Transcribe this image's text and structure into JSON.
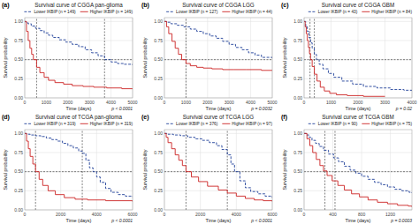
{
  "chart_data": [
    {
      "type": "step",
      "panel_label": "(a)",
      "title": "Survival curve of CGGA pan-glioma",
      "x_label": "Time (days)",
      "y_label": "Survival probability",
      "annotation": "p < 0.0001",
      "xlim": [
        0,
        5000
      ],
      "ylim": [
        0.0,
        1.05
      ],
      "xticks": [
        0,
        1000,
        2000,
        3000,
        4000,
        5000
      ],
      "yticks": [
        {
          "value": 0.0,
          "label": "0.00"
        },
        0.25,
        {
          "value": 0.5,
          "label": "0.50"
        },
        0.75,
        {
          "value": 1.0,
          "label": "1.00"
        }
      ],
      "grid": true,
      "legend": "upper right",
      "reference_lines": {
        "x": [
          3700,
          550
        ],
        "y": [
          0.5
        ]
      },
      "series": [
        {
          "name": "Lower IKBIP (n = 149)",
          "color": "#1F3F99",
          "line_style": "dashed",
          "x": [
            0,
            50,
            150,
            300,
            500,
            700,
            900,
            1100,
            1300,
            1600,
            1900,
            2200,
            2500,
            2800,
            3100,
            3400,
            3700,
            4000,
            4300,
            4600,
            5000
          ],
          "values": [
            1.0,
            0.99,
            0.97,
            0.94,
            0.91,
            0.88,
            0.85,
            0.82,
            0.79,
            0.76,
            0.73,
            0.7,
            0.67,
            0.63,
            0.59,
            0.55,
            0.5,
            0.47,
            0.45,
            0.44,
            0.43
          ]
        },
        {
          "name": "Higher IKBIP (n = 149)",
          "color": "#CC2222",
          "line_style": "solid",
          "x": [
            0,
            80,
            160,
            240,
            320,
            400,
            550,
            700,
            900,
            1100,
            1400,
            1800,
            2200,
            2700,
            3200,
            3800,
            4500,
            5000
          ],
          "values": [
            1.0,
            0.87,
            0.75,
            0.65,
            0.57,
            0.5,
            0.4,
            0.33,
            0.27,
            0.23,
            0.2,
            0.18,
            0.16,
            0.15,
            0.14,
            0.13,
            0.12,
            0.12
          ]
        }
      ]
    },
    {
      "type": "step",
      "panel_label": "(b)",
      "title": "Survival curve of CGGA LGG",
      "x_label": "Time (days)",
      "y_label": "Survival probability",
      "annotation": "p = 0.0032",
      "xlim": [
        0,
        5000
      ],
      "ylim": [
        0.0,
        1.05
      ],
      "xticks": [
        0,
        1000,
        2000,
        3000,
        4000,
        5000
      ],
      "yticks": [
        {
          "value": 0.0,
          "label": "0.00"
        },
        0.25,
        {
          "value": 0.5,
          "label": "0.50"
        },
        0.75,
        {
          "value": 1.0,
          "label": "1.00"
        }
      ],
      "grid": true,
      "legend": "upper right",
      "reference_lines": {
        "x": [
          1000
        ],
        "y": [
          0.5
        ]
      },
      "series": [
        {
          "name": "Lower IKBIP (n = 127)",
          "color": "#1F3F99",
          "line_style": "dashed",
          "x": [
            0,
            100,
            300,
            600,
            900,
            1200,
            1500,
            1800,
            2100,
            2400,
            2700,
            3000,
            3300,
            3600,
            3900,
            4200,
            4500,
            5000
          ],
          "values": [
            1.0,
            0.99,
            0.97,
            0.95,
            0.93,
            0.9,
            0.87,
            0.84,
            0.81,
            0.78,
            0.74,
            0.7,
            0.66,
            0.63,
            0.59,
            0.56,
            0.53,
            0.52
          ]
        },
        {
          "name": "Higher IKBIP (n = 44)",
          "color": "#CC2222",
          "line_style": "solid",
          "x": [
            0,
            100,
            200,
            350,
            500,
            650,
            800,
            1000,
            1200,
            1500,
            1800,
            2200,
            2700,
            3200,
            3800,
            4500,
            5000
          ],
          "values": [
            1.0,
            0.93,
            0.84,
            0.74,
            0.65,
            0.57,
            0.5,
            0.45,
            0.42,
            0.4,
            0.39,
            0.38,
            0.37,
            0.37,
            0.37,
            0.36,
            0.36
          ]
        }
      ]
    },
    {
      "type": "step",
      "panel_label": "(c)",
      "title": "Survival curve of CGGA GBM",
      "x_label": "Time (days)",
      "y_label": "Survival probability",
      "annotation": "p = 0.02",
      "xlim": [
        0,
        4000
      ],
      "ylim": [
        0.0,
        1.05
      ],
      "xticks": [
        0,
        1000,
        2000,
        3000,
        4000
      ],
      "yticks": [
        {
          "value": 0.0,
          "label": "0.00"
        },
        0.25,
        {
          "value": 0.5,
          "label": "0.50"
        },
        0.75,
        {
          "value": 1.0,
          "label": "1.00"
        }
      ],
      "grid": true,
      "legend": "upper right",
      "reference_lines": {
        "x": [
          380,
          220
        ],
        "y": [
          0.5
        ]
      },
      "series": [
        {
          "name": "Lower IKBIP (n = 43)",
          "color": "#1F3F99",
          "line_style": "dashed",
          "x": [
            0,
            60,
            120,
            180,
            240,
            300,
            380,
            460,
            560,
            700,
            900,
            1100,
            1400,
            1800,
            2200,
            2700,
            3200,
            3700,
            4000
          ],
          "values": [
            1.0,
            0.94,
            0.87,
            0.79,
            0.72,
            0.65,
            0.57,
            0.5,
            0.44,
            0.38,
            0.32,
            0.27,
            0.22,
            0.18,
            0.15,
            0.13,
            0.11,
            0.1,
            0.09
          ]
        },
        {
          "name": "Higher IKBIP (n = 84)",
          "color": "#CC2222",
          "line_style": "solid",
          "x": [
            0,
            40,
            80,
            120,
            160,
            200,
            240,
            300,
            380,
            480,
            600,
            750,
            950,
            1200,
            1600,
            2200,
            3000
          ],
          "values": [
            1.0,
            0.93,
            0.84,
            0.75,
            0.66,
            0.58,
            0.5,
            0.41,
            0.31,
            0.22,
            0.14,
            0.09,
            0.06,
            0.04,
            0.03,
            0.02,
            0.02
          ]
        }
      ]
    },
    {
      "type": "step",
      "panel_label": "(d)",
      "title": "Survival curve of TCGA pan-glioma",
      "x_label": "Time (days)",
      "y_label": "Survival probability",
      "annotation": "p < 0.0001",
      "xlim": [
        0,
        6000
      ],
      "ylim": [
        0.0,
        1.05
      ],
      "xticks": [
        0,
        2000,
        4000,
        6000
      ],
      "yticks": [
        {
          "value": 0.0,
          "label": "0.00"
        },
        0.25,
        {
          "value": 0.5,
          "label": "0.50"
        },
        0.75,
        {
          "value": 1.0,
          "label": "1.00"
        }
      ],
      "grid": true,
      "legend": "upper right",
      "reference_lines": {
        "x": [
          3200,
          600
        ],
        "y": [
          0.5
        ]
      },
      "series": [
        {
          "name": "Lower IKBIP (n = 319)",
          "color": "#1F3F99",
          "line_style": "dashed",
          "x": [
            0,
            100,
            300,
            600,
            900,
            1200,
            1500,
            1800,
            2100,
            2400,
            2700,
            3000,
            3200,
            3400,
            3600,
            3800,
            4000,
            4200,
            4500,
            4800,
            5200,
            5600,
            6000
          ],
          "values": [
            1.0,
            0.99,
            0.98,
            0.97,
            0.96,
            0.94,
            0.92,
            0.9,
            0.87,
            0.84,
            0.81,
            0.77,
            0.74,
            0.65,
            0.55,
            0.5,
            0.43,
            0.36,
            0.28,
            0.23,
            0.2,
            0.18,
            0.17
          ]
        },
        {
          "name": "Higher IKBIP (n = 319)",
          "color": "#CC2222",
          "line_style": "solid",
          "x": [
            0,
            100,
            200,
            300,
            450,
            600,
            800,
            1000,
            1300,
            1700,
            2200,
            2800,
            3500,
            4500,
            6000
          ],
          "values": [
            1.0,
            0.9,
            0.8,
            0.7,
            0.6,
            0.5,
            0.4,
            0.32,
            0.25,
            0.2,
            0.16,
            0.14,
            0.13,
            0.12,
            0.11
          ]
        }
      ]
    },
    {
      "type": "step",
      "panel_label": "(e)",
      "title": "Survival curve of TCGA LGG",
      "x_label": "Time (days)",
      "y_label": "Survival probability",
      "annotation": "p < 0.0001",
      "xlim": [
        0,
        6000
      ],
      "ylim": [
        0.0,
        1.05
      ],
      "xticks": [
        0,
        2000,
        4000,
        6000
      ],
      "yticks": [
        {
          "value": 0.0,
          "label": "0.00"
        },
        0.25,
        {
          "value": 0.5,
          "label": "0.50"
        },
        0.75,
        {
          "value": 1.0,
          "label": "1.00"
        }
      ],
      "grid": true,
      "legend": "upper right",
      "reference_lines": {
        "x": [
          3500,
          1200
        ],
        "y": [
          0.5
        ]
      },
      "series": [
        {
          "name": "Lower IKBIP (n = 376)",
          "color": "#1F3F99",
          "line_style": "dashed",
          "x": [
            0,
            200,
            500,
            900,
            1300,
            1700,
            2100,
            2500,
            2900,
            3200,
            3500,
            3700,
            3900,
            4200,
            4500,
            4800,
            5200,
            5600,
            6000
          ],
          "values": [
            1.0,
            0.99,
            0.98,
            0.97,
            0.95,
            0.93,
            0.91,
            0.88,
            0.84,
            0.79,
            0.72,
            0.6,
            0.5,
            0.38,
            0.29,
            0.24,
            0.21,
            0.18,
            0.16
          ]
        },
        {
          "name": "Higher IKBIP (n = 97)",
          "color": "#CC2222",
          "line_style": "solid",
          "x": [
            0,
            100,
            200,
            400,
            600,
            800,
            1000,
            1200,
            1500,
            1900,
            2400,
            3000,
            3500,
            4000,
            4500,
            5000,
            5500,
            6000
          ],
          "values": [
            1.0,
            0.95,
            0.88,
            0.8,
            0.72,
            0.65,
            0.58,
            0.5,
            0.43,
            0.37,
            0.31,
            0.26,
            0.22,
            0.18,
            0.15,
            0.13,
            0.12,
            0.11
          ]
        }
      ]
    },
    {
      "type": "step",
      "panel_label": "(f)",
      "title": "Survival curve of TCGA GBM",
      "x_label": "Time (days)",
      "y_label": "Survival probability",
      "annotation": "p = 0.0003",
      "xlim": [
        0,
        1500
      ],
      "ylim": [
        0.0,
        1.05
      ],
      "xticks": [
        0,
        400,
        800,
        1200
      ],
      "yticks": [
        {
          "value": 0.0,
          "label": "0.00"
        },
        0.25,
        {
          "value": 0.5,
          "label": "0.50"
        },
        0.75,
        {
          "value": 1.0,
          "label": "1.00"
        }
      ],
      "grid": true,
      "legend": "upper right",
      "reference_lines": {
        "x": [
          430,
          290
        ],
        "y": [
          0.5
        ]
      },
      "series": [
        {
          "name": "Lower IKBIP (n = 90)",
          "color": "#1F3F99",
          "line_style": "dashed",
          "x": [
            0,
            30,
            70,
            110,
            160,
            210,
            270,
            340,
            410,
            480,
            560,
            640,
            720,
            800,
            890,
            980,
            1070,
            1160,
            1260,
            1360,
            1460,
            1500
          ],
          "values": [
            1.0,
            0.98,
            0.95,
            0.91,
            0.87,
            0.83,
            0.78,
            0.73,
            0.68,
            0.63,
            0.57,
            0.52,
            0.48,
            0.44,
            0.4,
            0.36,
            0.33,
            0.3,
            0.27,
            0.25,
            0.23,
            0.22
          ]
        },
        {
          "name": "Higher IKBIP (n = 75)",
          "color": "#CC2222",
          "line_style": "solid",
          "x": [
            0,
            40,
            80,
            120,
            170,
            220,
            270,
            320,
            390,
            470,
            560,
            660,
            770,
            890,
            1020,
            1160,
            1300,
            1450,
            1500
          ],
          "values": [
            1.0,
            0.93,
            0.84,
            0.75,
            0.66,
            0.58,
            0.51,
            0.45,
            0.38,
            0.32,
            0.26,
            0.21,
            0.17,
            0.13,
            0.1,
            0.08,
            0.06,
            0.05,
            0.04
          ]
        }
      ]
    }
  ]
}
